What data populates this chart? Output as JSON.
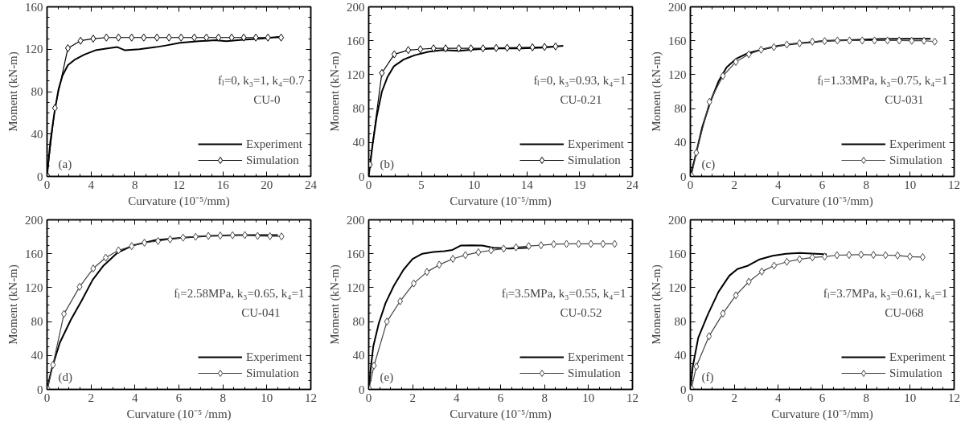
{
  "chart_data": [
    {
      "type": "line",
      "xlabel": "Curvature (10⁻⁵/mm)",
      "ylabel": "Moment (kN-m)",
      "annotations": [
        "fₗ=0, k₃=1, k₄=0.7",
        "CU-0",
        "(a)"
      ],
      "xlim": [
        0,
        24
      ],
      "ylim": [
        0,
        160
      ],
      "xticks": [
        0,
        4,
        8,
        12,
        16,
        20,
        24
      ],
      "yticks": [
        0,
        40,
        80,
        120,
        160
      ],
      "legend": "bottom right",
      "series": [
        {
          "name": "Experiment",
          "color": "#000000",
          "marker": "none",
          "x": [
            0,
            0.3,
            0.67,
            1.04,
            1.4,
            1.9,
            2.5,
            3.4,
            4.4,
            5.6,
            6.4,
            7.1,
            8.4,
            9.9,
            10.8,
            12.1,
            13.8,
            15.3,
            16.3,
            17.8,
            19.5,
            21.0,
            21.3
          ],
          "values": [
            0,
            33,
            60,
            82,
            95,
            105,
            110,
            115,
            119,
            121,
            122,
            119,
            120,
            122,
            123.5,
            126,
            127.5,
            128.5,
            127.5,
            129,
            130,
            131.5,
            130.8
          ]
        },
        {
          "name": "Simulation",
          "color": "#000000",
          "marker": "diamond",
          "x": [
            0,
            0.72,
            1.9,
            3.05,
            4.2,
            5.4,
            6.5,
            7.7,
            8.8,
            10.0,
            11.1,
            12.2,
            13.4,
            14.5,
            15.6,
            16.8,
            17.9,
            19.0,
            20.1,
            21.3
          ],
          "values": [
            1,
            64.6,
            121,
            128,
            130,
            131,
            131,
            131,
            131,
            131,
            131,
            131,
            131,
            131,
            131,
            131,
            131,
            131,
            131,
            131
          ]
        }
      ]
    },
    {
      "type": "line",
      "xlabel": "Curvature (10⁻⁵/mm)",
      "ylabel": "Moment (kN-m)",
      "annotations": [
        "fₗ=0, k₃=0.93, k₄=1",
        "CU-0.21",
        "(b)"
      ],
      "xlim": [
        0,
        24
      ],
      "ylim": [
        0,
        200
      ],
      "xticks": [
        0,
        {
          "value": 4.8,
          "label": "5"
        },
        {
          "value": 9.6,
          "label": "10"
        },
        {
          "value": 14.4,
          "label": "14"
        },
        {
          "value": 19.2,
          "label": "19"
        },
        24
      ],
      "yticks": [
        0,
        40,
        80,
        120,
        160,
        200
      ],
      "legend": "bottom right",
      "series": [
        {
          "name": "Experiment",
          "color": "#000000",
          "marker": "none",
          "x": [
            0,
            0.35,
            0.72,
            1.2,
            1.7,
            2.3,
            3.2,
            4.2,
            5.4,
            6.7,
            8.2,
            9.9,
            11.9,
            13.9,
            15.9,
            17.7
          ],
          "values": [
            0,
            37,
            70,
            100,
            117,
            130,
            138,
            143,
            147,
            149,
            148,
            150,
            151,
            151,
            152,
            154
          ]
        },
        {
          "name": "Simulation",
          "color": "#000000",
          "marker": "diamond",
          "x": [
            0.1,
            1.2,
            2.33,
            3.6,
            4.7,
            5.9,
            7.0,
            8.2,
            9.3,
            10.4,
            11.6,
            12.6,
            13.7,
            14.9,
            16.0,
            17.0
          ],
          "values": [
            14,
            122,
            144,
            149,
            150,
            151,
            151,
            151,
            151,
            151,
            151.5,
            151.7,
            152,
            152.3,
            152.7,
            153.3
          ]
        }
      ]
    },
    {
      "type": "line",
      "xlabel": "Curvature (10⁻⁵/mm)",
      "ylabel": "Moment (kN-m)",
      "annotations": [
        "fₗ=1.33MPa, k₃=0.75, k₄=1",
        "CU-031",
        "(c)"
      ],
      "xlim": [
        0,
        12
      ],
      "ylim": [
        0,
        200
      ],
      "xticks": [
        0,
        2,
        4,
        6,
        8,
        10,
        12
      ],
      "yticks": [
        0,
        40,
        80,
        120,
        160,
        200
      ],
      "legend": "bottom right",
      "series": [
        {
          "name": "Experiment",
          "color": "#000000",
          "marker": "none",
          "x": [
            0,
            0.23,
            0.54,
            0.91,
            1.28,
            1.65,
            2.08,
            2.63,
            3.25,
            3.99,
            4.97,
            6.2,
            7.43,
            8.66,
            9.89,
            10.93
          ],
          "values": [
            0,
            24,
            58,
            88,
            112,
            128.6,
            138.7,
            145.5,
            149.5,
            154,
            157,
            160,
            161,
            162,
            162.4,
            162.4
          ]
        },
        {
          "name": "Simulation",
          "color": "#444444",
          "marker": "diamond",
          "x": [
            0.05,
            0.27,
            0.87,
            1.48,
            2.07,
            2.66,
            3.22,
            3.8,
            4.39,
            4.97,
            5.55,
            6.11,
            6.69,
            7.24,
            7.82,
            8.38,
            8.97,
            9.5,
            10.07,
            10.63,
            11.12
          ],
          "values": [
            1,
            28,
            88,
            118.5,
            135,
            144,
            149.5,
            152.5,
            155.5,
            157,
            159,
            159.6,
            160.3,
            160.3,
            160.3,
            160.3,
            160.3,
            160.3,
            160,
            160,
            159
          ]
        }
      ]
    },
    {
      "type": "line",
      "xlabel": "Curvature (10⁻⁵ /mm)",
      "ylabel": "Moment (kN-m)",
      "annotations": [
        "fₗ=2.58MPa, k₃=0.65, k₄=1",
        "CU-041",
        "(d)"
      ],
      "xlim": [
        0,
        12
      ],
      "ylim": [
        0,
        200
      ],
      "xticks": [
        0,
        2,
        4,
        6,
        8,
        10,
        12
      ],
      "yticks": [
        0,
        40,
        80,
        120,
        160,
        200
      ],
      "legend": "bottom right",
      "series": [
        {
          "name": "Experiment",
          "color": "#000000",
          "marker": "none",
          "x": [
            0,
            0.21,
            0.58,
            1.08,
            1.58,
            2.07,
            2.57,
            3.19,
            3.93,
            4.93,
            6.17,
            7.4,
            8.66,
            9.89,
            10.5
          ],
          "values": [
            0,
            24,
            55,
            82,
            105,
            129,
            146,
            161,
            170,
            176,
            179,
            181,
            182,
            182,
            182
          ]
        },
        {
          "name": "Simulation",
          "color": "#444444",
          "marker": "diamond",
          "x": [
            0.02,
            0.27,
            0.77,
            1.48,
            2.1,
            2.67,
            3.25,
            3.85,
            4.43,
            5.05,
            5.6,
            6.19,
            6.76,
            7.34,
            7.88,
            8.44,
            9.0,
            9.58,
            10.14,
            10.67
          ],
          "values": [
            1,
            29,
            89,
            121,
            142.6,
            155.4,
            164,
            169,
            173,
            175,
            177,
            179,
            180,
            181,
            181.4,
            181.8,
            182,
            181,
            180.7,
            180.4
          ]
        }
      ]
    },
    {
      "type": "line",
      "xlabel": "Curvature (10⁻⁵/mm)",
      "ylabel": "Moment (kN-m)",
      "annotations": [
        "fₗ=3.5MPa, k₃=0.55, k₄=1",
        "CU-0.52",
        "(e)"
      ],
      "xlim": [
        0,
        12
      ],
      "ylim": [
        0,
        200
      ],
      "xticks": [
        0,
        2,
        4,
        6,
        8,
        10,
        12
      ],
      "yticks": [
        0,
        40,
        80,
        120,
        160,
        200
      ],
      "legend": "bottom right",
      "series": [
        {
          "name": "Experiment",
          "color": "#000000",
          "marker": "none",
          "x": [
            0,
            0.09,
            0.21,
            0.46,
            0.77,
            1.14,
            1.58,
            2.0,
            2.44,
            2.94,
            3.44,
            3.81,
            4.18,
            4.68,
            5.17,
            5.67,
            6.41,
            7.28
          ],
          "values": [
            0,
            24,
            51,
            78,
            102,
            122,
            141,
            154,
            160,
            162,
            163,
            164.5,
            169.6,
            170,
            169.6,
            167,
            166,
            167
          ]
        },
        {
          "name": "Simulation",
          "color": "#444444",
          "marker": "diamond",
          "x": [
            0.02,
            0.24,
            0.83,
            1.43,
            2.05,
            2.65,
            3.21,
            3.83,
            4.4,
            4.99,
            5.57,
            6.14,
            6.7,
            7.28,
            7.84,
            8.42,
            9.0,
            9.55,
            10.11,
            10.66,
            11.19
          ],
          "values": [
            1,
            28,
            80,
            104,
            125,
            138.5,
            147,
            154,
            158.4,
            161.8,
            164,
            166,
            167.6,
            169,
            170,
            171.3,
            171.6,
            171.6,
            171.6,
            171.6,
            171.6
          ]
        }
      ]
    },
    {
      "type": "line",
      "xlabel": "Curvature (10⁻⁵/mm)",
      "ylabel": "Moment (kN-m)",
      "annotations": [
        "fₗ=3.7MPa, k₃=0.61, k₄=1",
        "CU-068",
        "(f)"
      ],
      "xlim": [
        0,
        12
      ],
      "ylim": [
        0,
        200
      ],
      "xticks": [
        0,
        2,
        4,
        6,
        8,
        10,
        12
      ],
      "yticks": [
        0,
        40,
        80,
        120,
        160,
        200
      ],
      "legend": "bottom right",
      "series": [
        {
          "name": "Experiment",
          "color": "#000000",
          "marker": "none",
          "x": [
            0,
            0.11,
            0.36,
            0.79,
            1.28,
            1.77,
            2.14,
            2.63,
            3.12,
            3.74,
            4.35,
            4.97,
            5.71,
            6.2
          ],
          "values": [
            0,
            27,
            61,
            88,
            115,
            134,
            142,
            146,
            153,
            157.6,
            160,
            161,
            160,
            159.3
          ]
        },
        {
          "name": "Simulation",
          "color": "#444444",
          "marker": "diamond",
          "x": [
            0.05,
            0.27,
            0.85,
            1.48,
            2.07,
            2.66,
            3.25,
            3.81,
            4.39,
            4.97,
            5.55,
            6.11,
            6.67,
            7.22,
            7.77,
            8.33,
            8.88,
            9.43,
            9.99,
            10.57
          ],
          "values": [
            1,
            27,
            62.7,
            89.5,
            111,
            127,
            139,
            146,
            150.5,
            153.5,
            155.6,
            156.6,
            158.3,
            158.6,
            159,
            158.6,
            158.3,
            158,
            156.6,
            156
          ]
        }
      ]
    }
  ]
}
